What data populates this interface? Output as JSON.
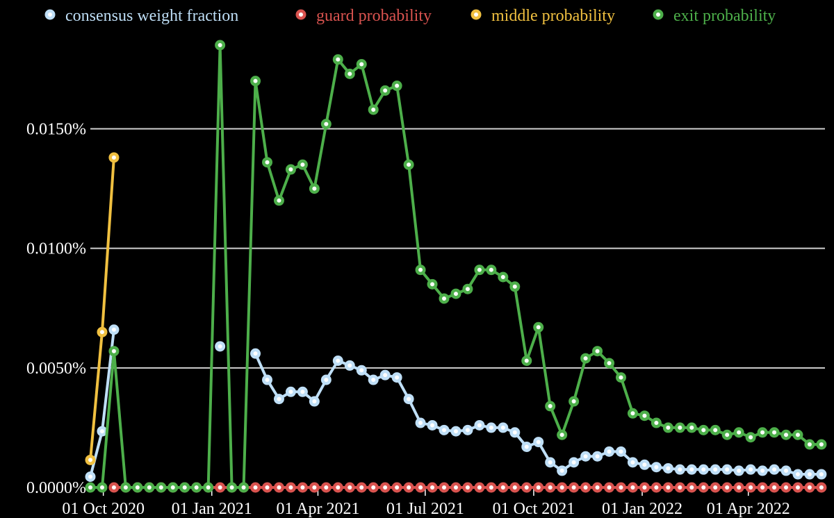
{
  "legend": [
    {
      "key": "cw",
      "label": "consensus weight fraction",
      "color": "#bfdff7"
    },
    {
      "key": "guard",
      "label": "guard probability",
      "color": "#d9534f"
    },
    {
      "key": "middle",
      "label": "middle probability",
      "color": "#f0c040"
    },
    {
      "key": "exit",
      "label": "exit probability",
      "color": "#4daf4a"
    }
  ],
  "chart_data": {
    "type": "line",
    "x_unit": "date",
    "y_unit": "percent",
    "ylim": [
      0,
      0.0185
    ],
    "xlim": [
      "2020-09-20",
      "2022-06-05"
    ],
    "grid": {
      "y": true,
      "x": false
    },
    "legend_position": "top",
    "xticks": [
      {
        "date": "2020-10-01",
        "label": "01 Oct 2020"
      },
      {
        "date": "2021-01-01",
        "label": "01 Jan 2021"
      },
      {
        "date": "2021-04-01",
        "label": "01 Apr 2021"
      },
      {
        "date": "2021-07-01",
        "label": "01 Jul 2021"
      },
      {
        "date": "2021-10-01",
        "label": "01 Oct 2021"
      },
      {
        "date": "2022-01-01",
        "label": "01 Jan 2022"
      },
      {
        "date": "2022-04-01",
        "label": "01 Apr 2022"
      }
    ],
    "yticks": [
      {
        "value": 0.0,
        "label": "0.0000%"
      },
      {
        "value": 0.005,
        "label": "0.0050%"
      },
      {
        "value": 0.01,
        "label": "0.0100%"
      },
      {
        "value": 0.015,
        "label": "0.0150%"
      }
    ],
    "x": [
      "2020-09-20",
      "2020-09-30",
      "2020-10-10",
      "2020-10-20",
      "2020-10-30",
      "2020-11-09",
      "2020-11-19",
      "2020-11-29",
      "2020-12-09",
      "2020-12-19",
      "2020-12-29",
      "2021-01-08",
      "2021-01-18",
      "2021-01-28",
      "2021-02-07",
      "2021-02-17",
      "2021-02-27",
      "2021-03-09",
      "2021-03-19",
      "2021-03-29",
      "2021-04-08",
      "2021-04-18",
      "2021-04-28",
      "2021-05-08",
      "2021-05-18",
      "2021-05-28",
      "2021-06-07",
      "2021-06-17",
      "2021-06-27",
      "2021-07-07",
      "2021-07-17",
      "2021-07-27",
      "2021-08-06",
      "2021-08-16",
      "2021-08-26",
      "2021-09-05",
      "2021-09-15",
      "2021-09-25",
      "2021-10-05",
      "2021-10-15",
      "2021-10-25",
      "2021-11-04",
      "2021-11-14",
      "2021-11-24",
      "2021-12-04",
      "2021-12-14",
      "2021-12-24",
      "2022-01-03",
      "2022-01-13",
      "2022-01-23",
      "2022-02-02",
      "2022-02-12",
      "2022-02-22",
      "2022-03-04",
      "2022-03-14",
      "2022-03-24",
      "2022-04-03",
      "2022-04-13",
      "2022-04-23",
      "2022-05-03",
      "2022-05-13",
      "2022-05-23",
      "2022-06-02"
    ],
    "series": [
      {
        "name": "consensus weight fraction",
        "key": "cw",
        "color": "#bfdff7",
        "values": [
          0.00045,
          0.00235,
          0.0066,
          null,
          null,
          null,
          null,
          null,
          null,
          null,
          null,
          0.0059,
          null,
          null,
          0.0056,
          0.0045,
          0.0037,
          0.004,
          0.004,
          0.0036,
          0.0045,
          0.0053,
          0.0051,
          0.0049,
          0.0045,
          0.0047,
          0.0046,
          0.0037,
          0.0027,
          0.0026,
          0.0024,
          0.00235,
          0.0024,
          0.0026,
          0.0025,
          0.0025,
          0.0023,
          0.0017,
          0.0019,
          0.00105,
          0.0007,
          0.00105,
          0.0013,
          0.0013,
          0.0015,
          0.0015,
          0.00105,
          0.00095,
          0.00085,
          0.0008,
          0.00075,
          0.00075,
          0.00075,
          0.00075,
          0.00075,
          0.0007,
          0.00075,
          0.0007,
          0.00075,
          0.0007,
          0.00055,
          0.00055,
          0.00055
        ]
      },
      {
        "name": "guard probability",
        "key": "guard",
        "color": "#d9534f",
        "values": [
          null,
          null,
          0,
          0,
          0,
          0,
          0,
          0,
          0,
          0,
          0,
          0,
          0,
          0,
          0,
          0,
          0,
          0,
          0,
          0,
          0,
          0,
          0,
          0,
          0,
          0,
          0,
          0,
          0,
          0,
          0,
          0,
          0,
          0,
          0,
          0,
          0,
          0,
          0,
          0,
          0,
          0,
          0,
          0,
          0,
          0,
          0,
          0,
          0,
          0,
          0,
          0,
          0,
          0,
          0,
          0,
          0,
          0,
          0,
          0,
          0,
          0,
          0
        ]
      },
      {
        "name": "middle probability",
        "key": "middle",
        "color": "#f0c040",
        "values": [
          0.00115,
          0.0065,
          0.0138,
          null,
          null,
          null,
          null,
          null,
          null,
          null,
          null,
          null,
          null,
          null,
          null,
          null,
          null,
          null,
          null,
          null,
          null,
          null,
          null,
          null,
          null,
          null,
          null,
          null,
          null,
          null,
          null,
          null,
          null,
          null,
          null,
          null,
          null,
          null,
          null,
          null,
          null,
          null,
          null,
          null,
          null,
          null,
          null,
          null,
          null,
          null,
          null,
          null,
          null,
          null,
          null,
          null,
          null,
          null,
          null,
          null,
          null,
          null,
          null
        ]
      },
      {
        "name": "exit probability",
        "key": "exit",
        "color": "#4daf4a",
        "values": [
          0,
          0,
          0.0057,
          0,
          0,
          0,
          0,
          0,
          0,
          0,
          0,
          0.0185,
          0,
          0,
          0.017,
          0.0136,
          0.012,
          0.0133,
          0.0135,
          0.0125,
          0.0152,
          0.0179,
          0.0173,
          0.0177,
          0.0158,
          0.0166,
          0.0168,
          0.0135,
          0.0091,
          0.0085,
          0.0079,
          0.0081,
          0.0083,
          0.0091,
          0.0091,
          0.0088,
          0.0084,
          0.0053,
          0.0067,
          0.0034,
          0.0022,
          0.0036,
          0.0054,
          0.0057,
          0.0052,
          0.0046,
          0.0031,
          0.003,
          0.0027,
          0.0025,
          0.0025,
          0.0025,
          0.0024,
          0.0024,
          0.0022,
          0.0023,
          0.0021,
          0.0023,
          0.0023,
          0.0022,
          0.0022,
          0.0018,
          0.0018
        ]
      }
    ]
  }
}
